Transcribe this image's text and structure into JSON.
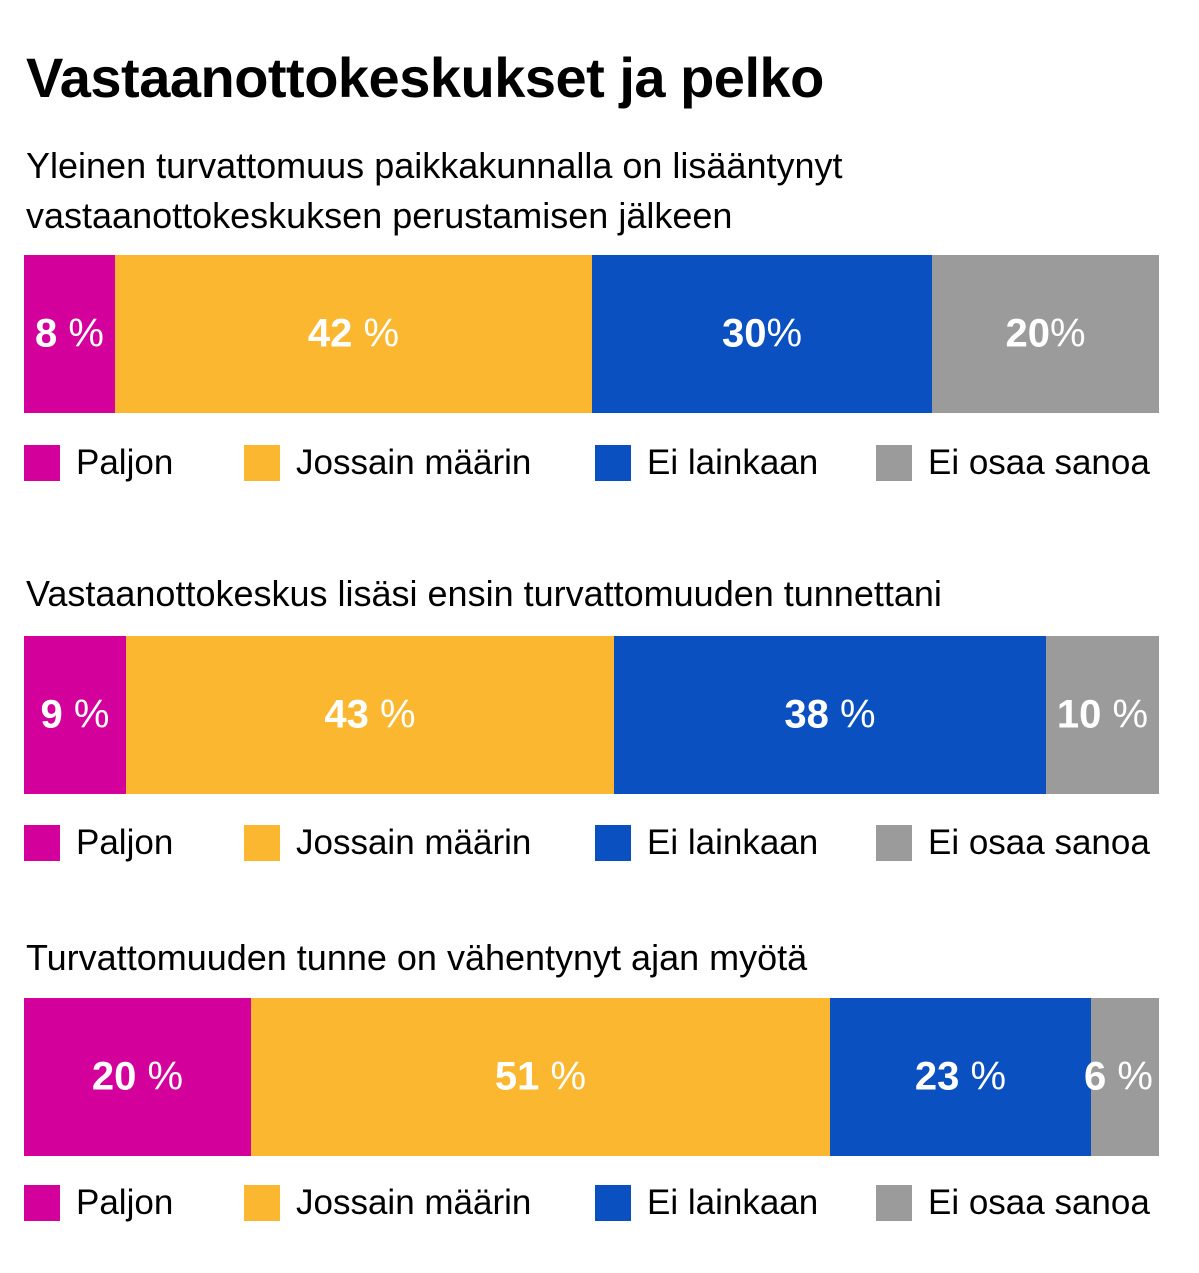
{
  "title": "Vastaanottokeskukset ja pelko",
  "colors": {
    "Paljon": "#d4009b",
    "Jossain määrin": "#fbb730",
    "Ei lainkaan": "#0b50c0",
    "Ei osaa sanoa": "#9b9b9b"
  },
  "legend": [
    "Paljon",
    "Jossain määrin",
    "Ei lainkaan",
    "Ei osaa sanoa"
  ],
  "chart_data": [
    {
      "type": "bar",
      "stacked": true,
      "orientation": "horizontal",
      "title": "Yleinen turvattomuus paikkakunnalla on lisääntynyt vastaanottokeskuksen perustamisen jälkeen",
      "title_lines": [
        "Yleinen turvattomuus paikkakunnalla on lisääntynyt",
        "vastaanottokeskuksen perustamisen jälkeen"
      ],
      "series": [
        {
          "name": "Paljon",
          "value": 8,
          "label": "8 %"
        },
        {
          "name": "Jossain määrin",
          "value": 42,
          "label": "42 %"
        },
        {
          "name": "Ei lainkaan",
          "value": 30,
          "label": "30%"
        },
        {
          "name": "Ei osaa sanoa",
          "value": 20,
          "label": "20%"
        }
      ]
    },
    {
      "type": "bar",
      "stacked": true,
      "orientation": "horizontal",
      "title": "Vastaanottokeskus lisäsi ensin turvattomuuden tunnettani",
      "title_lines": [
        "Vastaanottokeskus lisäsi ensin turvattomuuden tunnettani"
      ],
      "series": [
        {
          "name": "Paljon",
          "value": 9,
          "label": "9 %"
        },
        {
          "name": "Jossain määrin",
          "value": 43,
          "label": "43 %"
        },
        {
          "name": "Ei lainkaan",
          "value": 38,
          "label": "38 %"
        },
        {
          "name": "Ei osaa sanoa",
          "value": 10,
          "label": "10 %"
        }
      ]
    },
    {
      "type": "bar",
      "stacked": true,
      "orientation": "horizontal",
      "title": "Turvattomuuden tunne on vähentynyt ajan myötä",
      "title_lines": [
        "Turvattomuuden tunne on vähentynyt ajan myötä"
      ],
      "series": [
        {
          "name": "Paljon",
          "value": 20,
          "label": "20 %"
        },
        {
          "name": "Jossain määrin",
          "value": 51,
          "label": "51 %"
        },
        {
          "name": "Ei lainkaan",
          "value": 23,
          "label": "23 %"
        },
        {
          "name": "Ei osaa sanoa",
          "value": 6,
          "label": "6 %"
        }
      ]
    }
  ]
}
